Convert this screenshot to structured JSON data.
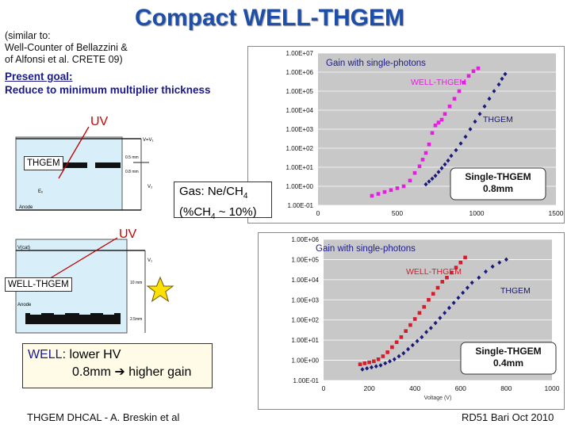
{
  "title": "Compact WELL-THGEM",
  "intro": {
    "line1": "(similar to:",
    "line2": "Well-Counter of Bellazzini &",
    "line3": " of Alfonsi et al. CRETE 09)"
  },
  "goal": {
    "heading": "Present goal:",
    "text": "Reduce to minimum multiplier thickness"
  },
  "labels": {
    "uv_top": "UV",
    "uv_bottom": "UV",
    "thgem_tag": "THGEM",
    "well_thgem_tag": "WELL-THGEM"
  },
  "gas": {
    "line1_prefix": "Gas: Ne/CH",
    "line1_sub": "4",
    "line2_prefix": "(%CH",
    "line2_sub": "4",
    "line2_suffix": " ~ 10%)"
  },
  "well_note": {
    "prefix": "WELL",
    "line1_rest": ": lower HV",
    "line2_pre": "0.8mm ",
    "arrow": "➔",
    "line2_post": " higher gain"
  },
  "schematic": {
    "top_labels": [
      "V=V₁",
      "V₂",
      "0.5 mm",
      "0.8 mm",
      "Anode",
      "Eₓ"
    ],
    "bottom_labels": [
      "V(cat)",
      "V₁",
      "10 mm",
      "2.5mm",
      "Anode"
    ]
  },
  "footer": {
    "left": "THGEM DHCAL - A. Breskin et al",
    "right": "RD51 Bari Oct 2010"
  },
  "colors": {
    "title": "#1d4fa8",
    "magenta": "#e81ce0",
    "navy": "#1a1a7a",
    "red": "#d41c2c",
    "chart_bg": "#c8c8c8",
    "schematic_bg": "#d8eef8",
    "star": "#ffe000"
  },
  "chart_data": [
    {
      "type": "scatter",
      "title": "Gain with single-photons",
      "xlabel": "",
      "ylabel": "",
      "xlim": [
        0,
        1500
      ],
      "ylim_log10": [
        -1,
        7
      ],
      "y_tick_labels": [
        "1.00E+07",
        "1.00E+06",
        "1.00E+05",
        "1.00E+04",
        "1.00E+03",
        "1.00E+02",
        "1.00E+01",
        "1.00E+00",
        "1.00E-01"
      ],
      "x_tick_labels": [
        "0",
        "500",
        "1000",
        "1500"
      ],
      "grid": true,
      "annotations": {
        "series_a": "WELL-THGEM",
        "series_b": "THGEM",
        "callout": "Single-THGEM\n0.8mm"
      },
      "series": [
        {
          "name": "WELL-THGEM",
          "color": "#e81ce0",
          "marker": "square",
          "x": [
            340,
            380,
            420,
            460,
            500,
            540,
            580,
            610,
            640,
            660,
            680,
            700,
            720,
            740,
            760,
            780,
            800,
            830,
            860,
            890,
            920,
            950,
            980,
            1010
          ],
          "log10y": [
            -0.5,
            -0.4,
            -0.3,
            -0.2,
            -0.1,
            0.0,
            0.3,
            0.7,
            1.05,
            1.4,
            1.75,
            2.2,
            2.8,
            3.2,
            3.35,
            3.5,
            3.8,
            4.2,
            4.6,
            5.0,
            5.45,
            5.8,
            6.05,
            6.2
          ]
        },
        {
          "name": "THGEM",
          "color": "#1a1a7a",
          "marker": "diamond",
          "x": [
            680,
            700,
            720,
            740,
            760,
            780,
            800,
            820,
            840,
            870,
            900,
            930,
            960,
            990,
            1020,
            1050,
            1080,
            1110,
            1140,
            1160,
            1180
          ],
          "log10y": [
            0.1,
            0.25,
            0.4,
            0.55,
            0.75,
            0.95,
            1.15,
            1.35,
            1.6,
            1.9,
            2.25,
            2.6,
            3.0,
            3.4,
            3.8,
            4.2,
            4.6,
            5.0,
            5.35,
            5.65,
            5.9
          ]
        }
      ]
    },
    {
      "type": "scatter",
      "title": "Gain with single-photons",
      "xlabel": "Voltage (V)",
      "ylabel": "",
      "xlim": [
        0,
        1000
      ],
      "ylim_log10": [
        -1,
        6
      ],
      "y_tick_labels": [
        "1.00E+06",
        "1.00E+05",
        "1.00E+04",
        "1.00E+03",
        "1.00E+02",
        "1.00E+01",
        "1.00E+00",
        "1.00E-01"
      ],
      "x_tick_labels": [
        "0",
        "200",
        "400",
        "600",
        "800",
        "1000"
      ],
      "grid": true,
      "annotations": {
        "series_a": "WELL-THGEM",
        "series_b": "THGEM",
        "callout": "Single-THGEM\n0.4mm"
      },
      "series": [
        {
          "name": "WELL-THGEM",
          "color": "#d41c2c",
          "marker": "square",
          "x": [
            160,
            180,
            200,
            220,
            240,
            260,
            280,
            300,
            320,
            340,
            360,
            380,
            400,
            420,
            440,
            460,
            480,
            500,
            520,
            540,
            560,
            580,
            600,
            620
          ],
          "log10y": [
            -0.2,
            -0.15,
            -0.1,
            -0.05,
            0.05,
            0.2,
            0.4,
            0.65,
            0.9,
            1.15,
            1.45,
            1.75,
            2.05,
            2.35,
            2.65,
            3.0,
            3.3,
            3.6,
            3.9,
            4.1,
            4.35,
            4.6,
            4.85,
            5.1
          ]
        },
        {
          "name": "THGEM",
          "color": "#1a1a7a",
          "marker": "diamond",
          "x": [
            170,
            190,
            210,
            230,
            250,
            270,
            290,
            310,
            330,
            350,
            370,
            390,
            410,
            430,
            450,
            470,
            490,
            510,
            530,
            550,
            570,
            590,
            610,
            630,
            650,
            680,
            710,
            740,
            770,
            800
          ],
          "log10y": [
            -0.45,
            -0.4,
            -0.35,
            -0.3,
            -0.25,
            -0.15,
            -0.05,
            0.05,
            0.2,
            0.35,
            0.55,
            0.75,
            0.95,
            1.15,
            1.4,
            1.6,
            1.85,
            2.1,
            2.35,
            2.6,
            2.85,
            3.1,
            3.35,
            3.6,
            3.85,
            4.1,
            4.4,
            4.65,
            4.85,
            5.0
          ]
        }
      ]
    }
  ]
}
